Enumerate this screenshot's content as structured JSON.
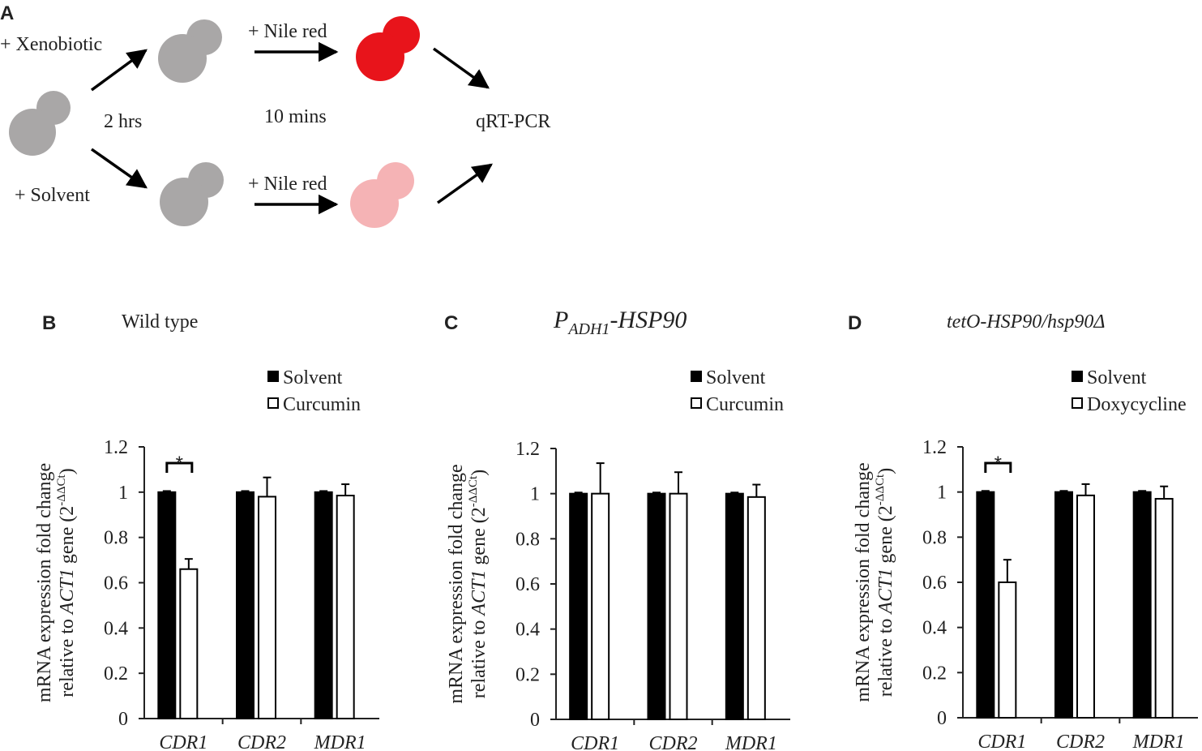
{
  "diagram": {
    "panel_label": "A",
    "xenobiotic": "+ Xenobiotic",
    "solvent": "+ Solvent",
    "nile_red_top": "+ Nile red",
    "nile_red_bottom": "+ Nile red",
    "time_first": "2 hrs",
    "time_second": "10 mins",
    "assay": "qRT-PCR"
  },
  "chart_data": [
    {
      "type": "bar",
      "panel_label": "B",
      "title": "Wild type",
      "y_label": [
        "mRNA expression fold change",
        "relative to ",
        "ACT1",
        " gene (2",
        "-ΔΔCt",
        ")"
      ],
      "categories": [
        "CDR1",
        "CDR2",
        "MDR1"
      ],
      "series": [
        {
          "name": "Solvent",
          "color": "#000000",
          "values": [
            1,
            1,
            1
          ],
          "errors": [
            0.005,
            0.005,
            0.005
          ]
        },
        {
          "name": "Curcumin",
          "color": "#ffffff",
          "values": [
            0.66,
            0.98,
            0.985
          ],
          "errors": [
            0.045,
            0.085,
            0.05
          ]
        }
      ],
      "ylim": [
        0,
        1.2
      ],
      "yticks": [
        0,
        0.2,
        0.4,
        0.6,
        0.8,
        1,
        1.2
      ],
      "significance": {
        "label": "*",
        "category": "CDR1"
      }
    },
    {
      "type": "bar",
      "panel_label": "C",
      "title": [
        "P",
        "ADH1",
        "-HSP90"
      ],
      "y_label": [
        "mRNA expression fold change",
        "relative to ",
        "ACT1",
        " gene (2",
        "-ΔΔCt",
        ")"
      ],
      "categories": [
        "CDR1",
        "CDR2",
        "MDR1"
      ],
      "series": [
        {
          "name": "Solvent",
          "color": "#000000",
          "values": [
            1,
            1,
            1
          ],
          "errors": [
            0.005,
            0.005,
            0.005
          ]
        },
        {
          "name": "Curcumin",
          "color": "#ffffff",
          "values": [
            1,
            1,
            0.985
          ],
          "errors": [
            0.135,
            0.095,
            0.055
          ]
        }
      ],
      "ylim": [
        0,
        1.2
      ],
      "yticks": [
        0,
        0.2,
        0.4,
        0.6,
        0.8,
        1,
        1.2
      ]
    },
    {
      "type": "bar",
      "panel_label": "D",
      "title": "tetO-HSP90/hsp90Δ",
      "y_label": [
        "mRNA expression fold change",
        "relative to ",
        "ACT1",
        " gene (2",
        "-ΔΔCt",
        ")"
      ],
      "categories": [
        "CDR1",
        "CDR2",
        "MDR1"
      ],
      "series": [
        {
          "name": "Solvent",
          "color": "#000000",
          "values": [
            1,
            1,
            1
          ],
          "errors": [
            0.005,
            0.005,
            0.005
          ]
        },
        {
          "name": "Doxycycline",
          "color": "#ffffff",
          "values": [
            0.6,
            0.985,
            0.97
          ],
          "errors": [
            0.1,
            0.05,
            0.055
          ]
        }
      ],
      "ylim": [
        0,
        1.2
      ],
      "yticks": [
        0,
        0.2,
        0.4,
        0.6,
        0.8,
        1,
        1.2
      ],
      "significance": {
        "label": "*",
        "category": "CDR1"
      }
    }
  ]
}
